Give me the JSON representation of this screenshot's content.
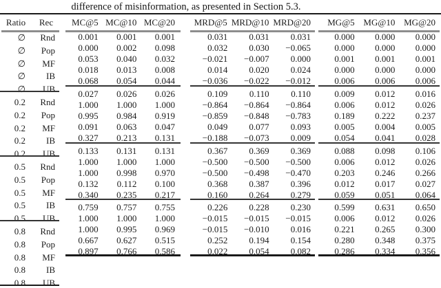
{
  "caption": "difference of misinformation, as presented in Section 5.3.",
  "colors": {
    "background": "#ffffff",
    "text": "#1c1c1c",
    "rule_black": "#1a1a1a",
    "rule_gray": "#8d8d8d",
    "rule_dark": "#333333"
  },
  "table": {
    "left_headers": {
      "ratio": "Ratio",
      "rec": "Rec"
    },
    "metric_headers": {
      "mc": [
        "MC@5",
        "MC@10",
        "MC@20"
      ],
      "mrd": [
        "MRD@5",
        "MRD@10",
        "MRD@20"
      ],
      "mg": [
        "MG@5",
        "MG@10",
        "MG@20"
      ]
    },
    "row_labels": [
      {
        "ratio": "∅",
        "rec": "Rnd"
      },
      {
        "ratio": "∅",
        "rec": "Pop"
      },
      {
        "ratio": "∅",
        "rec": "MF"
      },
      {
        "ratio": "∅",
        "rec": "IB"
      },
      {
        "ratio": "∅",
        "rec": "UB"
      },
      {
        "ratio": "0.2",
        "rec": "Rnd"
      },
      {
        "ratio": "0.2",
        "rec": "Pop"
      },
      {
        "ratio": "0.2",
        "rec": "MF"
      },
      {
        "ratio": "0.2",
        "rec": "IB"
      },
      {
        "ratio": "0.2",
        "rec": "UB"
      },
      {
        "ratio": "0.5",
        "rec": "Rnd"
      },
      {
        "ratio": "0.5",
        "rec": "Pop"
      },
      {
        "ratio": "0.5",
        "rec": "MF"
      },
      {
        "ratio": "0.5",
        "rec": "IB"
      },
      {
        "ratio": "0.5",
        "rec": "UB"
      },
      {
        "ratio": "0.8",
        "rec": "Rnd"
      },
      {
        "ratio": "0.8",
        "rec": "Pop"
      },
      {
        "ratio": "0.8",
        "rec": "MF"
      },
      {
        "ratio": "0.8",
        "rec": "IB"
      },
      {
        "ratio": "0.8",
        "rec": "UB"
      }
    ],
    "groups": [
      {
        "ratio": "∅",
        "mc": [
          [
            "0.001",
            "0.001",
            "0.001"
          ],
          [
            "0.000",
            "0.002",
            "0.098"
          ],
          [
            "0.053",
            "0.040",
            "0.032"
          ],
          [
            "0.018",
            "0.013",
            "0.008"
          ],
          [
            "0.068",
            "0.054",
            "0.044"
          ]
        ],
        "mrd": [
          [
            "0.031",
            "0.031",
            "0.031"
          ],
          [
            "0.032",
            "0.030",
            "−0.065"
          ],
          [
            "−0.021",
            "−0.007",
            "0.000"
          ],
          [
            "0.014",
            "0.020",
            "0.024"
          ],
          [
            "−0.036",
            "−0.022",
            "−0.012"
          ]
        ],
        "mg": [
          [
            "0.000",
            "0.000",
            "0.000"
          ],
          [
            "0.000",
            "0.000",
            "0.000"
          ],
          [
            "0.001",
            "0.001",
            "0.001"
          ],
          [
            "0.000",
            "0.000",
            "0.000"
          ],
          [
            "0.006",
            "0.006",
            "0.006"
          ]
        ]
      },
      {
        "ratio": "0.2",
        "mc": [
          [
            "0.027",
            "0.026",
            "0.026"
          ],
          [
            "1.000",
            "1.000",
            "1.000"
          ],
          [
            "0.995",
            "0.984",
            "0.919"
          ],
          [
            "0.091",
            "0.063",
            "0.047"
          ],
          [
            "0.327",
            "0.213",
            "0.131"
          ]
        ],
        "mrd": [
          [
            "0.109",
            "0.110",
            "0.110"
          ],
          [
            "−0.864",
            "−0.864",
            "−0.864"
          ],
          [
            "−0.859",
            "−0.848",
            "−0.783"
          ],
          [
            "0.049",
            "0.077",
            "0.093"
          ],
          [
            "−0.188",
            "−0.073",
            "0.009"
          ]
        ],
        "mg": [
          [
            "0.009",
            "0.012",
            "0.016"
          ],
          [
            "0.006",
            "0.012",
            "0.026"
          ],
          [
            "0.189",
            "0.222",
            "0.237"
          ],
          [
            "0.005",
            "0.004",
            "0.005"
          ],
          [
            "0.054",
            "0.041",
            "0.028"
          ]
        ]
      },
      {
        "ratio": "0.5",
        "mc": [
          [
            "0.133",
            "0.131",
            "0.131"
          ],
          [
            "1.000",
            "1.000",
            "1.000"
          ],
          [
            "1.000",
            "0.998",
            "0.970"
          ],
          [
            "0.132",
            "0.112",
            "0.100"
          ],
          [
            "0.340",
            "0.235",
            "0.217"
          ]
        ],
        "mrd": [
          [
            "0.367",
            "0.369",
            "0.369"
          ],
          [
            "−0.500",
            "−0.500",
            "−0.500"
          ],
          [
            "−0.500",
            "−0.498",
            "−0.470"
          ],
          [
            "0.368",
            "0.387",
            "0.396"
          ],
          [
            "0.160",
            "0.264",
            "0.279"
          ]
        ],
        "mg": [
          [
            "0.088",
            "0.098",
            "0.106"
          ],
          [
            "0.006",
            "0.012",
            "0.026"
          ],
          [
            "0.203",
            "0.246",
            "0.266"
          ],
          [
            "0.012",
            "0.017",
            "0.027"
          ],
          [
            "0.059",
            "0.051",
            "0.064"
          ]
        ]
      },
      {
        "ratio": "0.8",
        "mc": [
          [
            "0.759",
            "0.757",
            "0.755"
          ],
          [
            "1.000",
            "1.000",
            "1.000"
          ],
          [
            "1.000",
            "0.995",
            "0.969"
          ],
          [
            "0.667",
            "0.627",
            "0.515"
          ],
          [
            "0.897",
            "0.766",
            "0.586"
          ]
        ],
        "mrd": [
          [
            "0.226",
            "0.228",
            "0.230"
          ],
          [
            "−0.015",
            "−0.015",
            "−0.015"
          ],
          [
            "−0.015",
            "−0.010",
            "0.016"
          ],
          [
            "0.252",
            "0.194",
            "0.154"
          ],
          [
            "0.022",
            "0.054",
            "0.082"
          ]
        ],
        "mg": [
          [
            "0.599",
            "0.631",
            "0.650"
          ],
          [
            "0.006",
            "0.012",
            "0.026"
          ],
          [
            "0.221",
            "0.265",
            "0.300"
          ],
          [
            "0.280",
            "0.348",
            "0.375"
          ],
          [
            "0.286",
            "0.334",
            "0.356"
          ]
        ]
      }
    ]
  }
}
